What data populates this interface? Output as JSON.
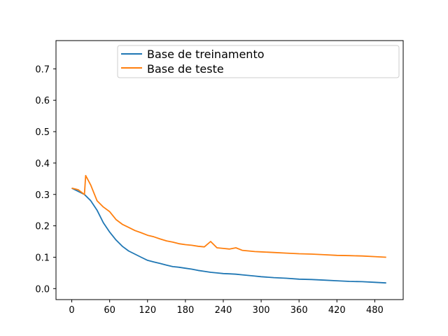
{
  "chart_data": {
    "type": "line",
    "title": "",
    "xlabel": "",
    "ylabel": "",
    "xlim": [
      -25,
      525
    ],
    "ylim": [
      -0.035,
      0.79
    ],
    "xticks": [
      0,
      60,
      120,
      180,
      240,
      300,
      360,
      420,
      480
    ],
    "yticks": [
      0.0,
      0.1,
      0.2,
      0.3,
      0.4,
      0.5,
      0.6,
      0.7
    ],
    "ytick_labels": [
      "0.0",
      "0.1",
      "0.2",
      "0.3",
      "0.4",
      "0.5",
      "0.6",
      "0.7"
    ],
    "grid": false,
    "legend_position": "top-center",
    "series": [
      {
        "name": "Base de treinamento",
        "color": "#1f77b4",
        "x": [
          0,
          10,
          20,
          30,
          40,
          50,
          60,
          70,
          80,
          90,
          100,
          110,
          120,
          130,
          140,
          150,
          160,
          170,
          180,
          190,
          200,
          210,
          220,
          230,
          240,
          250,
          260,
          270,
          280,
          290,
          300,
          320,
          340,
          360,
          380,
          400,
          420,
          440,
          460,
          480,
          498
        ],
        "values": [
          0.32,
          0.31,
          0.3,
          0.28,
          0.25,
          0.21,
          0.18,
          0.155,
          0.135,
          0.12,
          0.11,
          0.1,
          0.09,
          0.085,
          0.08,
          0.075,
          0.07,
          0.068,
          0.065,
          0.062,
          0.058,
          0.055,
          0.052,
          0.05,
          0.048,
          0.047,
          0.046,
          0.044,
          0.042,
          0.04,
          0.038,
          0.035,
          0.033,
          0.03,
          0.029,
          0.027,
          0.025,
          0.023,
          0.022,
          0.02,
          0.018
        ]
      },
      {
        "name": "Base de teste",
        "color": "#ff7f0e",
        "x": [
          0,
          10,
          20,
          22,
          30,
          40,
          50,
          60,
          70,
          80,
          90,
          100,
          110,
          120,
          130,
          140,
          150,
          160,
          170,
          180,
          190,
          200,
          210,
          220,
          230,
          240,
          250,
          260,
          270,
          280,
          290,
          300,
          320,
          340,
          360,
          380,
          400,
          420,
          440,
          460,
          480,
          498
        ],
        "values": [
          0.32,
          0.315,
          0.3,
          0.36,
          0.33,
          0.28,
          0.26,
          0.245,
          0.22,
          0.205,
          0.195,
          0.185,
          0.178,
          0.17,
          0.165,
          0.158,
          0.152,
          0.148,
          0.143,
          0.14,
          0.138,
          0.135,
          0.133,
          0.15,
          0.13,
          0.128,
          0.126,
          0.13,
          0.122,
          0.12,
          0.118,
          0.117,
          0.115,
          0.113,
          0.111,
          0.11,
          0.108,
          0.106,
          0.105,
          0.104,
          0.102,
          0.1
        ]
      }
    ]
  }
}
